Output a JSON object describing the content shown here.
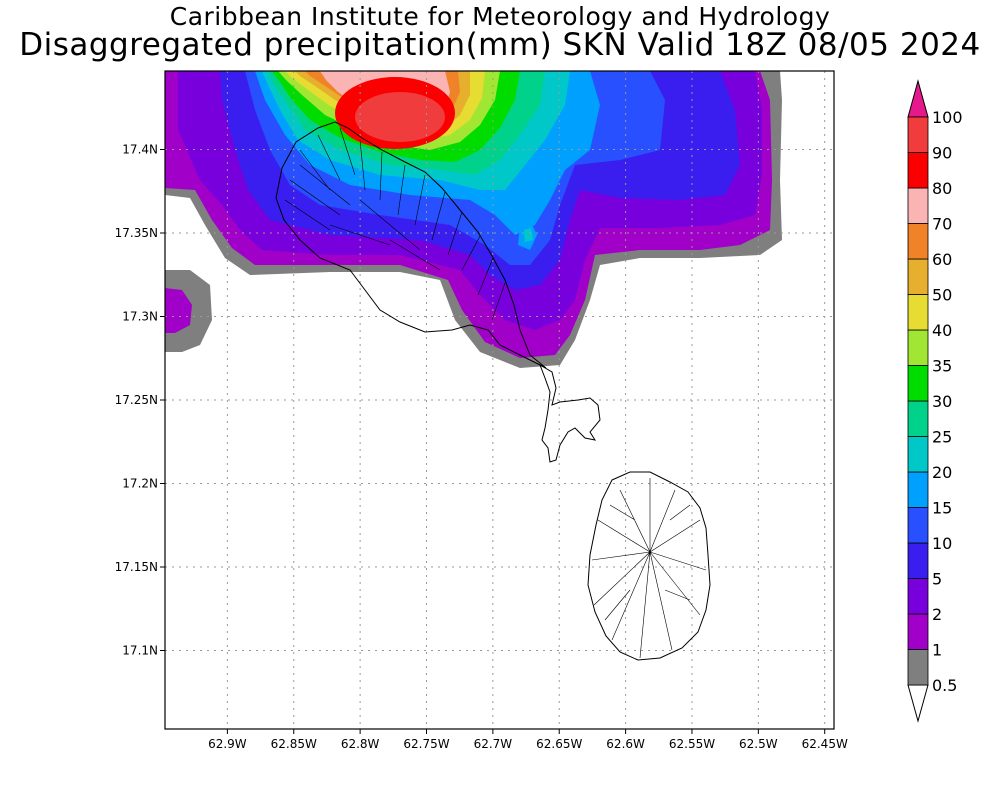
{
  "title_line1": "Caribbean Institute for Meteorology and Hydrology",
  "title_line2": "Disaggregated precipitation(mm) SKN Valid 18Z 08/05 2024",
  "map": {
    "lat_ticks": [
      "17.4N",
      "17.35N",
      "17.3N",
      "17.25N",
      "17.2N",
      "17.15N",
      "17.1N"
    ],
    "lon_ticks": [
      "62.9W",
      "62.85W",
      "62.8W",
      "62.75W",
      "62.7W",
      "62.65W",
      "62.6W",
      "62.55W",
      "62.5W",
      "62.45W"
    ],
    "lon_range": [
      -62.947,
      -62.443
    ],
    "lat_range": [
      17.053,
      17.447
    ]
  },
  "colorbar": {
    "levels": [
      "0.5",
      "1",
      "2",
      "5",
      "10",
      "15",
      "20",
      "25",
      "30",
      "35",
      "40",
      "50",
      "60",
      "70",
      "80",
      "90",
      "100"
    ],
    "colors": [
      "#7f7f7f",
      "#a000c8",
      "#7800dc",
      "#3a1ef0",
      "#2850ff",
      "#00a0ff",
      "#00c8c8",
      "#00d28c",
      "#00dc00",
      "#a0e632",
      "#e6dc32",
      "#e6af2d",
      "#f08228",
      "#fab4b4",
      "#fa0000",
      "#f03c3c"
    ],
    "top_arrow_color": "#e6198c",
    "bottom_arrow_color": "#ffffff"
  },
  "chart_data": {
    "type": "heatmap",
    "title": "Caribbean Institute for Meteorology and Hydrology",
    "subtitle": "Disaggregated precipitation(mm) SKN Valid 18Z 08/05 2024",
    "units": "mm",
    "xlim": [
      -62.947,
      -62.443
    ],
    "ylim": [
      17.053,
      17.447
    ],
    "grid": true,
    "legend": "right",
    "field_peak": {
      "lon": -62.775,
      "lat": 17.42,
      "value_range": "80-90"
    },
    "precip_regions": [
      {
        "name": "north-central-maximum",
        "lon": -62.775,
        "lat": 17.42,
        "max_level": "90"
      },
      {
        "name": "northeast-band",
        "lon": -62.55,
        "lat": 17.4,
        "max_level": "15"
      },
      {
        "name": "west-edge-cell",
        "lon": -62.94,
        "lat": 17.3,
        "max_level": "2"
      }
    ]
  }
}
